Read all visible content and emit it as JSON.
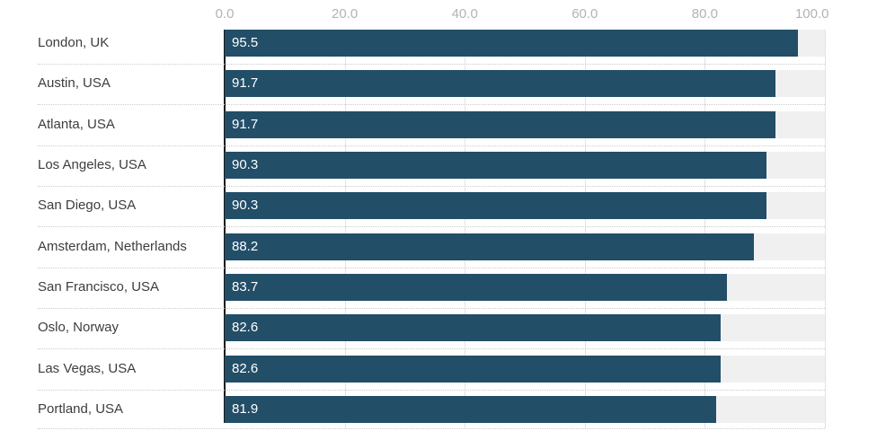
{
  "chart_data": {
    "type": "bar",
    "orientation": "horizontal",
    "title": "",
    "categories": [
      "London, UK",
      "Austin, USA",
      "Atlanta, USA",
      "Los Angeles, USA",
      "San Diego, USA",
      "Amsterdam, Netherlands",
      "San Francisco, USA",
      "Oslo, Norway",
      "Las Vegas, USA",
      "Portland, USA"
    ],
    "values": [
      95.5,
      91.7,
      91.7,
      90.3,
      90.3,
      88.2,
      83.7,
      82.6,
      82.6,
      81.9
    ],
    "value_labels": [
      "95.5",
      "91.7",
      "91.7",
      "90.3",
      "90.3",
      "88.2",
      "83.7",
      "82.6",
      "82.6",
      "81.9"
    ],
    "xlim": [
      0,
      100
    ],
    "x_ticks": [
      0,
      20,
      40,
      60,
      80,
      100
    ],
    "x_tick_labels": [
      "0.0",
      "20.0",
      "40.0",
      "60.0",
      "80.0",
      "100.0"
    ],
    "grid": true,
    "legend": null,
    "colors": {
      "bar": "#224e68",
      "bar_track": "#f0f0f0",
      "bar_value_text": "#ffffff",
      "category_text": "#3d3d3d",
      "axis_tick_text": "#b3b3b3",
      "gridline": "#e3e3e3",
      "row_separator": "#cccccc",
      "axis_line": "#1a1a1a",
      "background": "#ffffff"
    }
  }
}
